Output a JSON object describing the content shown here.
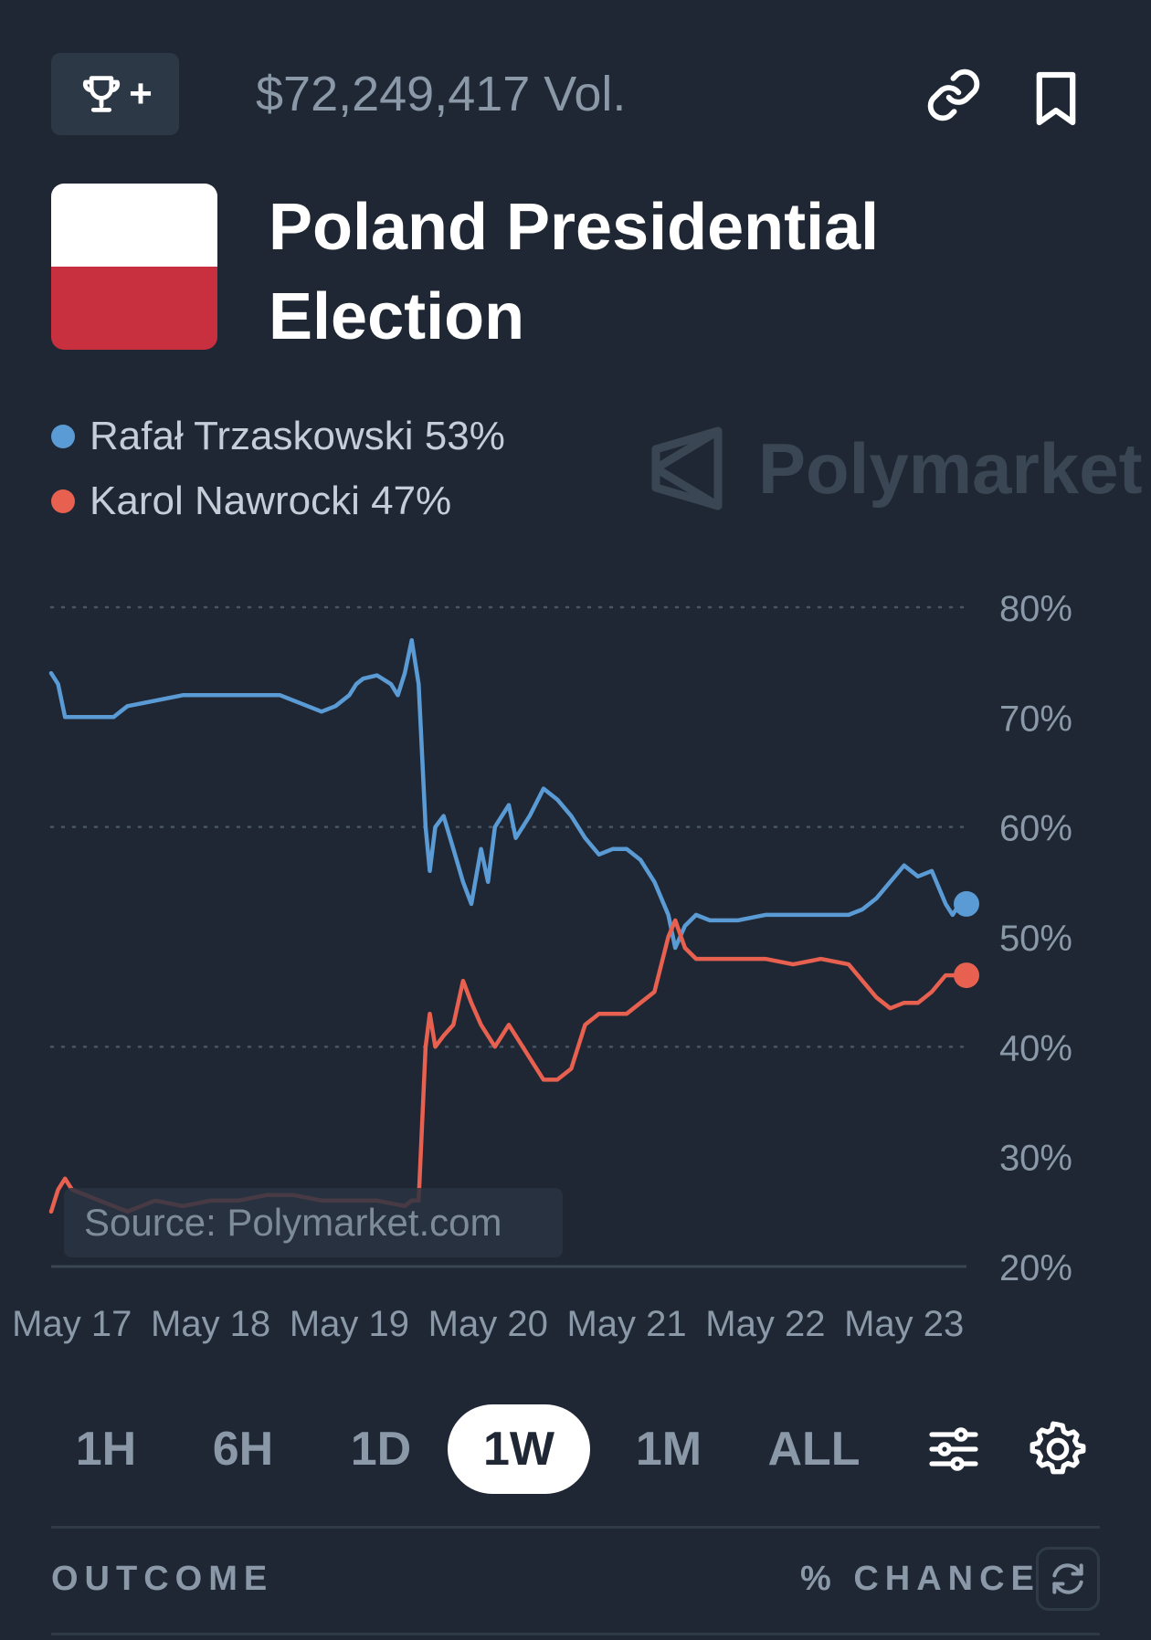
{
  "header": {
    "volume": "$72,249,417 Vol.",
    "trophy_plus": "+",
    "icons": [
      "trophy-icon",
      "link-icon",
      "bookmark-icon"
    ]
  },
  "market": {
    "title": "Poland Presidential Election",
    "flag_colors": [
      "#ffffff",
      "#c9303f"
    ]
  },
  "legend": [
    {
      "name": "Rafał Trzaskowski",
      "pct": "53%",
      "color": "#5b9bd5"
    },
    {
      "name": "Karol Nawrocki",
      "pct": "47%",
      "color": "#e8604f"
    }
  ],
  "watermark": "Polymarket",
  "source_label": "Source: Polymarket.com",
  "timeframes": [
    "1H",
    "6H",
    "1D",
    "1W",
    "1M",
    "ALL"
  ],
  "active_timeframe": "1W",
  "outcome_header": {
    "left": "OUTCOME",
    "right": "% CHANCE"
  },
  "chart_data": {
    "type": "line",
    "x_ticks": [
      "May 17",
      "May 18",
      "May 19",
      "May 20",
      "May 21",
      "May 22",
      "May 23"
    ],
    "y_ticks": [
      "80%",
      "70%",
      "60%",
      "50%",
      "40%",
      "30%",
      "20%"
    ],
    "ylim": [
      20,
      80
    ],
    "xlim": [
      16.85,
      23.45
    ],
    "grid": "dotted horizontal at 40, 60, 80",
    "series": [
      {
        "name": "Rafał Trzaskowski",
        "color": "#5b9bd5",
        "points": [
          [
            16.85,
            74
          ],
          [
            16.9,
            73
          ],
          [
            16.95,
            70
          ],
          [
            17.3,
            70
          ],
          [
            17.4,
            71
          ],
          [
            17.6,
            71.5
          ],
          [
            17.8,
            72
          ],
          [
            18.3,
            72
          ],
          [
            18.5,
            72
          ],
          [
            18.6,
            71.5
          ],
          [
            18.7,
            71
          ],
          [
            18.8,
            70.5
          ],
          [
            18.9,
            71
          ],
          [
            19.0,
            72
          ],
          [
            19.05,
            73
          ],
          [
            19.1,
            73.5
          ],
          [
            19.2,
            73.8
          ],
          [
            19.3,
            73
          ],
          [
            19.35,
            72
          ],
          [
            19.4,
            74
          ],
          [
            19.45,
            77
          ],
          [
            19.5,
            73
          ],
          [
            19.55,
            60
          ],
          [
            19.58,
            56
          ],
          [
            19.62,
            60
          ],
          [
            19.68,
            61
          ],
          [
            19.75,
            58
          ],
          [
            19.82,
            55
          ],
          [
            19.88,
            53
          ],
          [
            19.95,
            58
          ],
          [
            20.0,
            55
          ],
          [
            20.05,
            60
          ],
          [
            20.1,
            61
          ],
          [
            20.15,
            62
          ],
          [
            20.2,
            59
          ],
          [
            20.3,
            61
          ],
          [
            20.4,
            63.5
          ],
          [
            20.5,
            62.5
          ],
          [
            20.6,
            61
          ],
          [
            20.7,
            59
          ],
          [
            20.8,
            57.5
          ],
          [
            20.9,
            58
          ],
          [
            21.0,
            58
          ],
          [
            21.1,
            57
          ],
          [
            21.2,
            55
          ],
          [
            21.3,
            52
          ],
          [
            21.35,
            49
          ],
          [
            21.42,
            51
          ],
          [
            21.5,
            52
          ],
          [
            21.6,
            51.5
          ],
          [
            21.8,
            51.5
          ],
          [
            22.0,
            52
          ],
          [
            22.2,
            52
          ],
          [
            22.4,
            52
          ],
          [
            22.6,
            52
          ],
          [
            22.7,
            52.5
          ],
          [
            22.8,
            53.5
          ],
          [
            22.9,
            55
          ],
          [
            23.0,
            56.5
          ],
          [
            23.1,
            55.5
          ],
          [
            23.2,
            56
          ],
          [
            23.3,
            53
          ],
          [
            23.35,
            52
          ],
          [
            23.4,
            53
          ],
          [
            23.45,
            53
          ]
        ]
      },
      {
        "name": "Karol Nawrocki",
        "color": "#e8604f",
        "points": [
          [
            16.85,
            25
          ],
          [
            16.9,
            27
          ],
          [
            16.95,
            28
          ],
          [
            17.0,
            27
          ],
          [
            17.2,
            26
          ],
          [
            17.4,
            25
          ],
          [
            17.6,
            26
          ],
          [
            17.8,
            25.5
          ],
          [
            18.0,
            26
          ],
          [
            18.2,
            26
          ],
          [
            18.4,
            26.5
          ],
          [
            18.6,
            26.5
          ],
          [
            18.8,
            26
          ],
          [
            19.0,
            26
          ],
          [
            19.2,
            26
          ],
          [
            19.4,
            25.5
          ],
          [
            19.45,
            26
          ],
          [
            19.5,
            26
          ],
          [
            19.55,
            40
          ],
          [
            19.58,
            43
          ],
          [
            19.62,
            40
          ],
          [
            19.68,
            41
          ],
          [
            19.75,
            42
          ],
          [
            19.82,
            46
          ],
          [
            19.88,
            44
          ],
          [
            19.95,
            42
          ],
          [
            20.0,
            41
          ],
          [
            20.05,
            40
          ],
          [
            20.1,
            41
          ],
          [
            20.15,
            42
          ],
          [
            20.2,
            41
          ],
          [
            20.3,
            39
          ],
          [
            20.4,
            37
          ],
          [
            20.5,
            37
          ],
          [
            20.6,
            38
          ],
          [
            20.7,
            42
          ],
          [
            20.8,
            43
          ],
          [
            20.9,
            43
          ],
          [
            21.0,
            43
          ],
          [
            21.1,
            44
          ],
          [
            21.2,
            45
          ],
          [
            21.3,
            50
          ],
          [
            21.35,
            51.5
          ],
          [
            21.42,
            49
          ],
          [
            21.5,
            48
          ],
          [
            21.6,
            48
          ],
          [
            21.8,
            48
          ],
          [
            22.0,
            48
          ],
          [
            22.2,
            47.5
          ],
          [
            22.4,
            48
          ],
          [
            22.6,
            47.5
          ],
          [
            22.7,
            46
          ],
          [
            22.8,
            44.5
          ],
          [
            22.9,
            43.5
          ],
          [
            23.0,
            44
          ],
          [
            23.1,
            44
          ],
          [
            23.2,
            45
          ],
          [
            23.3,
            46.5
          ],
          [
            23.35,
            46.5
          ],
          [
            23.4,
            46.5
          ],
          [
            23.45,
            46.5
          ]
        ]
      }
    ]
  }
}
